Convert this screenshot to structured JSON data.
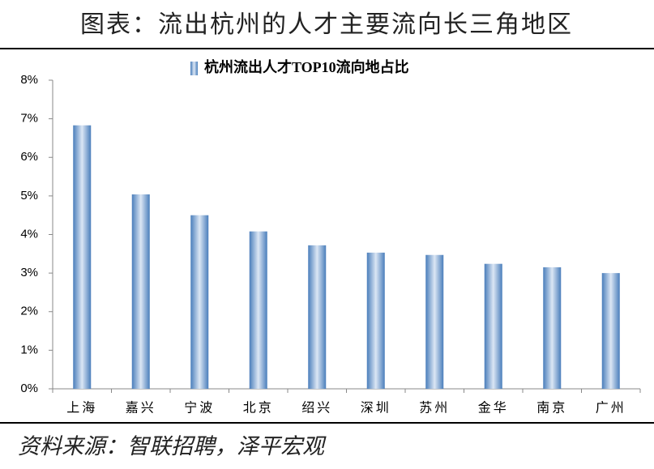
{
  "header_title": "图表：流出杭州的人才主要流向长三角地区",
  "source": "资料来源：智联招聘，泽平宏观",
  "chart_data": {
    "type": "bar",
    "categories": [
      "上海",
      "嘉兴",
      "宁波",
      "北京",
      "绍兴",
      "深圳",
      "苏州",
      "金华",
      "南京",
      "广州"
    ],
    "series": [
      {
        "name": "杭州流出人才TOP10流向地占比",
        "color": "#4a7ebb",
        "values": [
          6.83,
          5.04,
          4.5,
          4.08,
          3.72,
          3.53,
          3.47,
          3.24,
          3.15,
          3.0
        ]
      }
    ],
    "ylim": [
      0,
      8
    ],
    "yticks": [
      {
        "value": 0,
        "label": "0%"
      },
      {
        "value": 1,
        "label": "1%"
      },
      {
        "value": 2,
        "label": "2%"
      },
      {
        "value": 3,
        "label": "3%"
      },
      {
        "value": 4,
        "label": "4%"
      },
      {
        "value": 5,
        "label": "5%"
      },
      {
        "value": 6,
        "label": "6%"
      },
      {
        "value": 7,
        "label": "7%"
      },
      {
        "value": 8,
        "label": "8%"
      }
    ],
    "grid": false
  }
}
